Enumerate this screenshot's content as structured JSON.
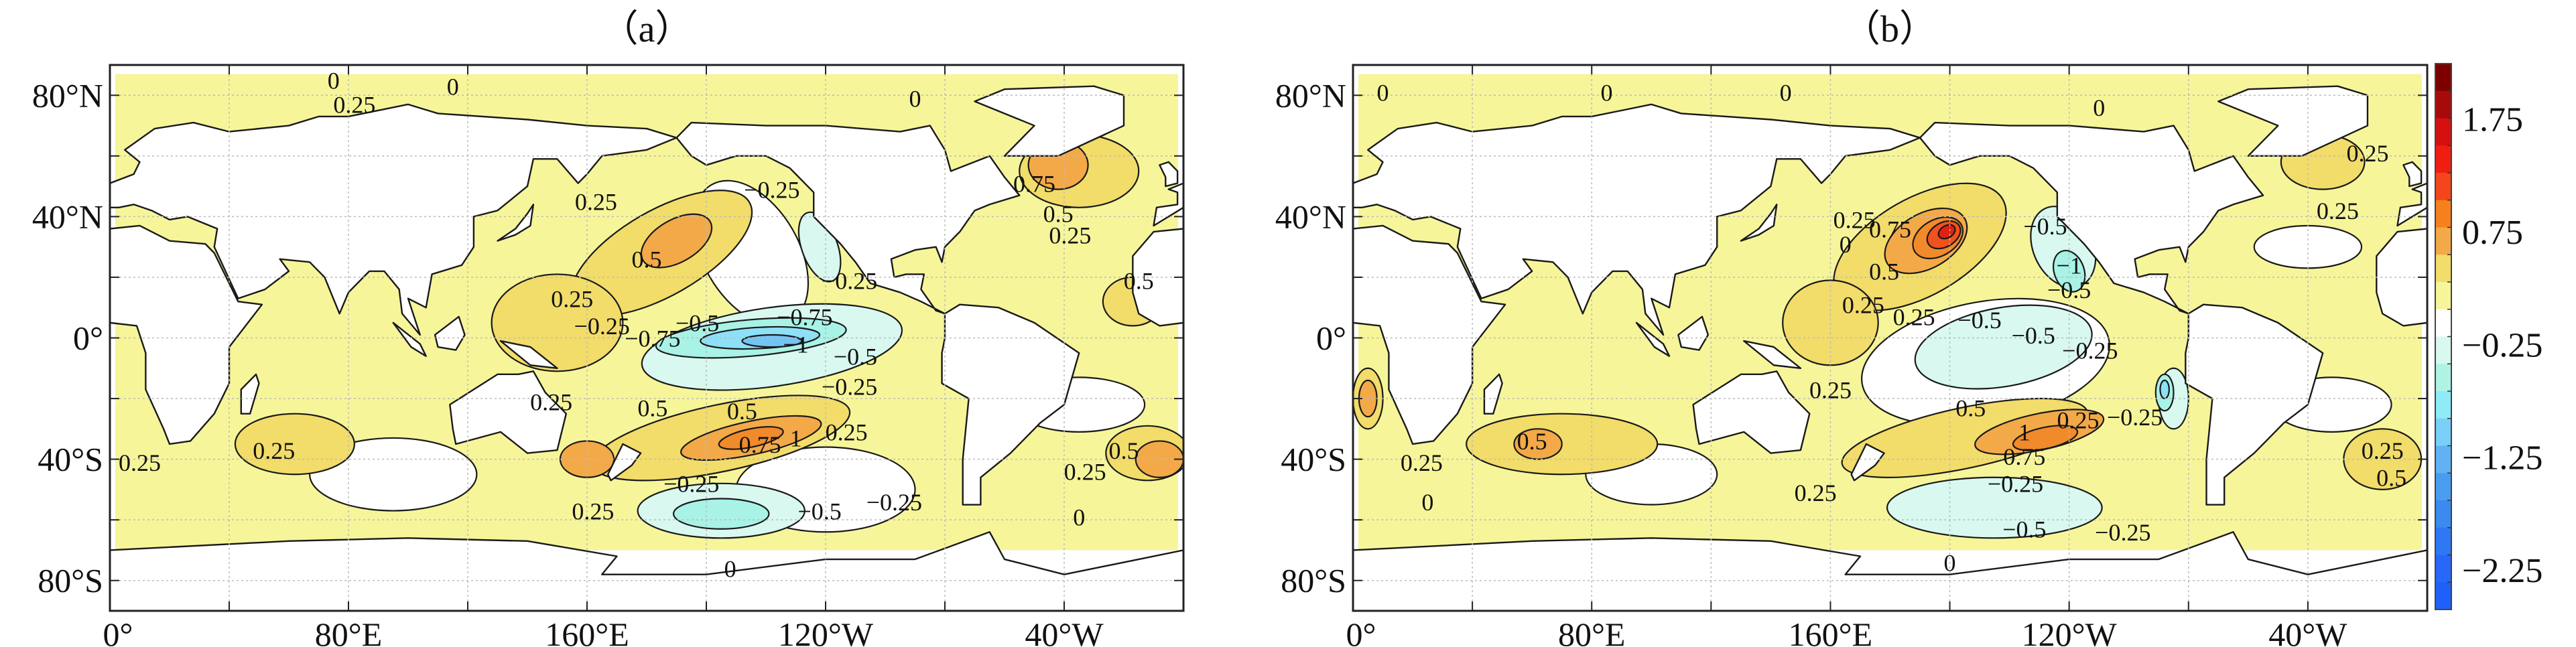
{
  "chart_data": [
    {
      "type": "heatmap",
      "subtype": "filled-contour-map",
      "title": "（a）",
      "xlim": [
        0,
        360
      ],
      "ylim": [
        -90,
        90
      ],
      "xticks": [
        0,
        40,
        80,
        120,
        160,
        200,
        240,
        280,
        320
      ],
      "xtick_labels": {
        "0": "0°",
        "80": "80°E",
        "160": "160°E",
        "240": "120°W",
        "320": "40°W"
      },
      "yticks": [
        80,
        40,
        0,
        -40,
        -80
      ],
      "ytick_labels": [
        "80°N",
        "40°N",
        "0°",
        "40°S",
        "80°S"
      ],
      "grid": true,
      "anomaly_regions": [
        {
          "value": 0,
          "lon": 95,
          "lat": -45,
          "rlon": 28,
          "rlat": 12,
          "rot": 0
        },
        {
          "value": 0,
          "lon": 215,
          "lat": 28,
          "rlon": 16,
          "rlat": 26,
          "rot": -30
        },
        {
          "value": 0,
          "lon": 325,
          "lat": -22,
          "rlon": 22,
          "rlat": 9,
          "rot": 0
        },
        {
          "value": 0,
          "lon": 240,
          "lat": -50,
          "rlon": 30,
          "rlat": 14,
          "rot": 0
        },
        {
          "value": 0.25,
          "lon": 185,
          "lat": 28,
          "rlon": 34,
          "rlat": 14,
          "rot": -30
        },
        {
          "value": 0.25,
          "lon": 150,
          "lat": 5,
          "rlon": 22,
          "rlat": 16,
          "rot": 0
        },
        {
          "value": 0.25,
          "lon": 205,
          "lat": -33,
          "rlon": 44,
          "rlat": 11,
          "rot": -12
        },
        {
          "value": 0.25,
          "lon": 62,
          "lat": -35,
          "rlon": 20,
          "rlat": 10,
          "rot": 0
        },
        {
          "value": 0.25,
          "lon": 325,
          "lat": 55,
          "rlon": 20,
          "rlat": 12,
          "rot": 0
        },
        {
          "value": 0.25,
          "lon": 348,
          "lat": -38,
          "rlon": 14,
          "rlat": 9,
          "rot": 0
        },
        {
          "value": 0.25,
          "lon": 343,
          "lat": 12,
          "rlon": 10,
          "rlat": 8,
          "rot": 0
        },
        {
          "value": 0.5,
          "lon": 190,
          "lat": 32,
          "rlon": 13,
          "rlat": 7,
          "rot": -30
        },
        {
          "value": 0.5,
          "lon": 215,
          "lat": -33,
          "rlon": 24,
          "rlat": 5.5,
          "rot": -12
        },
        {
          "value": 0.5,
          "lon": 160,
          "lat": -40,
          "rlon": 9,
          "rlat": 6,
          "rot": 0
        },
        {
          "value": 0.5,
          "lon": 318,
          "lat": 57,
          "rlon": 10,
          "rlat": 8,
          "rot": 0
        },
        {
          "value": 0.5,
          "lon": 352,
          "lat": -40,
          "rlon": 8,
          "rlat": 6,
          "rot": 0
        },
        {
          "value": 0.75,
          "lon": 215,
          "lat": -33,
          "rlon": 11,
          "rlat": 3,
          "rot": -12
        },
        {
          "value": -0.25,
          "lon": 222,
          "lat": -3,
          "rlon": 44,
          "rlat": 13,
          "rot": -8
        },
        {
          "value": -0.25,
          "lon": 205,
          "lat": -57,
          "rlon": 28,
          "rlat": 9,
          "rot": 0
        },
        {
          "value": -0.25,
          "lon": 238,
          "lat": 30,
          "rlon": 6,
          "rlat": 12,
          "rot": -20
        },
        {
          "value": -0.5,
          "lon": 215,
          "lat": 0,
          "rlon": 32,
          "rlat": 6,
          "rot": -5
        },
        {
          "value": -0.5,
          "lon": 205,
          "lat": -58,
          "rlon": 16,
          "rlat": 5,
          "rot": 0
        },
        {
          "value": -0.75,
          "lon": 218,
          "lat": 0,
          "rlon": 20,
          "rlat": 3.5,
          "rot": -3
        },
        {
          "value": -1,
          "lon": 222,
          "lat": -1,
          "rlon": 10,
          "rlat": 2,
          "rot": 0
        }
      ],
      "contour_labels": [
        {
          "text": "0",
          "lon": 75,
          "lat": 84
        },
        {
          "text": "0",
          "lon": 115,
          "lat": 82
        },
        {
          "text": "0.25",
          "lon": 82,
          "lat": 76
        },
        {
          "text": "0",
          "lon": 270,
          "lat": 78
        },
        {
          "text": "0.75",
          "lon": 310,
          "lat": 50
        },
        {
          "text": "0.5",
          "lon": 318,
          "lat": 40
        },
        {
          "text": "0.25",
          "lon": 322,
          "lat": 33
        },
        {
          "text": "0.25",
          "lon": 163,
          "lat": 44
        },
        {
          "text": "0.5",
          "lon": 180,
          "lat": 25
        },
        {
          "text": "-0.25",
          "lon": 222,
          "lat": 48
        },
        {
          "text": "-0.25",
          "lon": 248,
          "lat": 18
        },
        {
          "text": "0.25",
          "lon": 155,
          "lat": 12
        },
        {
          "text": "-0.25",
          "lon": 165,
          "lat": 3
        },
        {
          "text": "-0.5",
          "lon": 197,
          "lat": 4
        },
        {
          "text": "-0.75",
          "lon": 182,
          "lat": -1
        },
        {
          "text": "-1",
          "lon": 230,
          "lat": -3
        },
        {
          "text": "-0.75",
          "lon": 233,
          "lat": 6
        },
        {
          "text": "-0.5",
          "lon": 250,
          "lat": -7
        },
        {
          "text": "-0.25",
          "lon": 248,
          "lat": -17
        },
        {
          "text": "0.25",
          "lon": 148,
          "lat": -22
        },
        {
          "text": "0.5",
          "lon": 182,
          "lat": -24
        },
        {
          "text": "0.5",
          "lon": 212,
          "lat": -25
        },
        {
          "text": "0.75",
          "lon": 218,
          "lat": -36
        },
        {
          "text": "1",
          "lon": 230,
          "lat": -34
        },
        {
          "text": "0.25",
          "lon": 247,
          "lat": -32
        },
        {
          "text": "-0.25",
          "lon": 195,
          "lat": -49
        },
        {
          "text": "-0.5",
          "lon": 238,
          "lat": -58
        },
        {
          "text": "-0.25",
          "lon": 263,
          "lat": -55
        },
        {
          "text": "0.25",
          "lon": 55,
          "lat": -38
        },
        {
          "text": "0.25",
          "lon": 10,
          "lat": -42
        },
        {
          "text": "0.25",
          "lon": 162,
          "lat": -58
        },
        {
          "text": "0.5",
          "lon": 340,
          "lat": -38
        },
        {
          "text": "0.25",
          "lon": 327,
          "lat": -45
        },
        {
          "text": "0.5",
          "lon": 345,
          "lat": 18
        },
        {
          "text": "0",
          "lon": 325,
          "lat": -60
        },
        {
          "text": "0",
          "lon": 208,
          "lat": -77
        }
      ]
    },
    {
      "type": "heatmap",
      "subtype": "filled-contour-map",
      "title": "（b）",
      "xlim": [
        0,
        360
      ],
      "ylim": [
        -90,
        90
      ],
      "xticks": [
        0,
        40,
        80,
        120,
        160,
        200,
        240,
        280,
        320
      ],
      "xtick_labels": {
        "0": "0°",
        "80": "80°E",
        "160": "160°E",
        "240": "120°W",
        "320": "40°W"
      },
      "yticks": [
        80,
        40,
        0,
        -40,
        -80
      ],
      "ytick_labels": [
        "80°N",
        "40°N",
        "0°",
        "40°S",
        "80°S"
      ],
      "grid": true,
      "anomaly_regions": [
        {
          "value": 0,
          "lon": 212,
          "lat": -8,
          "rlon": 42,
          "rlat": 20,
          "rot": -10
        },
        {
          "value": 0,
          "lon": 100,
          "lat": -45,
          "rlon": 22,
          "rlat": 10,
          "rot": 0
        },
        {
          "value": 0,
          "lon": 328,
          "lat": -22,
          "rlon": 20,
          "rlat": 9,
          "rot": 0
        },
        {
          "value": 0,
          "lon": 320,
          "lat": 30,
          "rlon": 18,
          "rlat": 7,
          "rot": 0
        },
        {
          "value": 0.25,
          "lon": 190,
          "lat": 30,
          "rlon": 32,
          "rlat": 16,
          "rot": -30
        },
        {
          "value": 0.25,
          "lon": 160,
          "lat": 5,
          "rlon": 16,
          "rlat": 14,
          "rot": 0
        },
        {
          "value": 0.25,
          "lon": 205,
          "lat": -33,
          "rlon": 42,
          "rlat": 10,
          "rot": -12
        },
        {
          "value": 0.25,
          "lon": 70,
          "lat": -35,
          "rlon": 32,
          "rlat": 10,
          "rot": 0
        },
        {
          "value": 0.25,
          "lon": 345,
          "lat": -40,
          "rlon": 13,
          "rlat": 10,
          "rot": 0
        },
        {
          "value": 0.25,
          "lon": 325,
          "lat": 58,
          "rlon": 14,
          "rlat": 9,
          "rot": 0
        },
        {
          "value": 0.25,
          "lon": 5,
          "lat": -20,
          "rlon": 5,
          "rlat": 10,
          "rot": 0
        },
        {
          "value": 0.5,
          "lon": 192,
          "lat": 32,
          "rlon": 15,
          "rlat": 9,
          "rot": -30
        },
        {
          "value": 0.5,
          "lon": 230,
          "lat": -31,
          "rlon": 22,
          "rlat": 6,
          "rot": -12
        },
        {
          "value": 0.5,
          "lon": 62,
          "lat": -35,
          "rlon": 8,
          "rlat": 5,
          "rot": 0
        },
        {
          "value": 0.5,
          "lon": 5,
          "lat": -20,
          "rlon": 3,
          "rlat": 6,
          "rot": 0
        },
        {
          "value": 0.75,
          "lon": 196,
          "lat": 33,
          "rlon": 9,
          "rlat": 6,
          "rot": -30
        },
        {
          "value": 0.75,
          "lon": 232,
          "lat": -33,
          "rlon": 11,
          "rlat": 3.5,
          "rot": -12
        },
        {
          "value": 1,
          "lon": 198,
          "lat": 34,
          "rlon": 6,
          "rlat": 4,
          "rot": -30
        },
        {
          "value": 1.25,
          "lon": 199,
          "lat": 35,
          "rlon": 3,
          "rlat": 2,
          "rot": -30
        },
        {
          "value": -0.25,
          "lon": 218,
          "lat": -3,
          "rlon": 30,
          "rlat": 13,
          "rot": -10
        },
        {
          "value": -0.25,
          "lon": 215,
          "lat": -56,
          "rlon": 36,
          "rlat": 10,
          "rot": 0
        },
        {
          "value": -0.25,
          "lon": 238,
          "lat": 30,
          "rlon": 10,
          "rlat": 14,
          "rot": -25
        },
        {
          "value": -0.25,
          "lon": 275,
          "lat": -20,
          "rlon": 5,
          "rlat": 10,
          "rot": 0
        },
        {
          "value": -0.5,
          "lon": 240,
          "lat": 22,
          "rlon": 5,
          "rlat": 7,
          "rot": -20
        },
        {
          "value": -0.5,
          "lon": 272,
          "lat": -18,
          "rlon": 3,
          "rlat": 6,
          "rot": 0
        },
        {
          "value": -0.75,
          "lon": 272,
          "lat": -17,
          "rlon": 1.5,
          "rlat": 3,
          "rot": 0
        }
      ],
      "contour_labels": [
        {
          "text": "0",
          "lon": 10,
          "lat": 80
        },
        {
          "text": "0",
          "lon": 85,
          "lat": 80
        },
        {
          "text": "0",
          "lon": 145,
          "lat": 80
        },
        {
          "text": "0",
          "lon": 250,
          "lat": 75
        },
        {
          "text": "0.25",
          "lon": 340,
          "lat": 60
        },
        {
          "text": "0.25",
          "lon": 330,
          "lat": 41
        },
        {
          "text": "0.25",
          "lon": 168,
          "lat": 38
        },
        {
          "text": "0",
          "lon": 165,
          "lat": 30
        },
        {
          "text": "0.75",
          "lon": 180,
          "lat": 35
        },
        {
          "text": "0.5",
          "lon": 178,
          "lat": 21
        },
        {
          "text": "-0.5",
          "lon": 232,
          "lat": 36
        },
        {
          "text": "-1",
          "lon": 240,
          "lat": 23
        },
        {
          "text": "-0.5",
          "lon": 240,
          "lat": 15
        },
        {
          "text": "0.25",
          "lon": 171,
          "lat": 10
        },
        {
          "text": "0.25",
          "lon": 188,
          "lat": 6
        },
        {
          "text": "-0.5",
          "lon": 210,
          "lat": 5
        },
        {
          "text": "-0.5",
          "lon": 228,
          "lat": 0
        },
        {
          "text": "-0.25",
          "lon": 247,
          "lat": -5
        },
        {
          "text": "0.25",
          "lon": 160,
          "lat": -18
        },
        {
          "text": "0.5",
          "lon": 207,
          "lat": -24
        },
        {
          "text": "1",
          "lon": 225,
          "lat": -32
        },
        {
          "text": "0.75",
          "lon": 225,
          "lat": -40
        },
        {
          "text": "0.25",
          "lon": 243,
          "lat": -28
        },
        {
          "text": "-0.25",
          "lon": 262,
          "lat": -27
        },
        {
          "text": "-0.25",
          "lon": 222,
          "lat": -49
        },
        {
          "text": "-0.5",
          "lon": 225,
          "lat": -64
        },
        {
          "text": "-0.25",
          "lon": 258,
          "lat": -65
        },
        {
          "text": "0.5",
          "lon": 60,
          "lat": -35
        },
        {
          "text": "0.25",
          "lon": 23,
          "lat": -42
        },
        {
          "text": "0.25",
          "lon": 155,
          "lat": -52
        },
        {
          "text": "0.25",
          "lon": 345,
          "lat": -38
        },
        {
          "text": "0.5",
          "lon": 348,
          "lat": -47
        },
        {
          "text": "0",
          "lon": 25,
          "lat": -55
        },
        {
          "text": "0",
          "lon": 200,
          "lat": -75
        }
      ]
    }
  ],
  "colorbar": {
    "range": [
      -2.6,
      2.24
    ],
    "ticks": [
      1.75,
      0.75,
      -0.25,
      -1.25,
      -2.25
    ],
    "tick_labels": [
      "1.75",
      "0.75",
      "−0.25",
      "−1.25",
      "−2.25"
    ],
    "colors": [
      "#7d0000",
      "#a80a0a",
      "#d41010",
      "#f01e10",
      "#f5451a",
      "#f5801e",
      "#f3a948",
      "#f2dc6a",
      "#f6f59a",
      "#ffffff",
      "#d8f8f0",
      "#aef3e4",
      "#8eecf6",
      "#78d0f8",
      "#60b2f4",
      "#4a9cf0",
      "#3a8af0",
      "#2e78f5",
      "#2868f8",
      "#2060fa"
    ]
  },
  "fill_colors": {
    "-1": "#72c4f4",
    "-0.75": "#8ee0f6",
    "-0.5": "#a8f2e6",
    "-0.25": "#d8f8f0",
    "0": "#ffffff",
    "0.25": "#f2dc6a",
    "0.5": "#f3a948",
    "0.75": "#f08a2a",
    "1": "#f0521e",
    "1.25": "#e02010",
    "base": "#f6f59a"
  }
}
